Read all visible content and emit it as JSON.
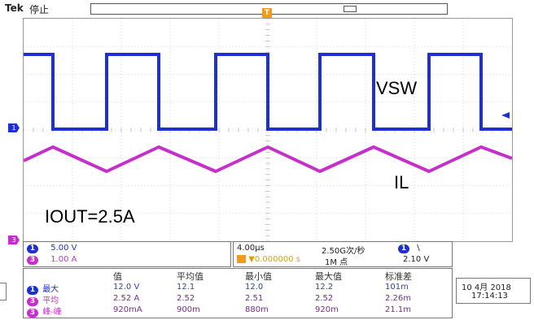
{
  "header": {
    "brand": "Tek",
    "status": "停止",
    "trigger_marker": "T"
  },
  "annotations": {
    "vsw": "VSW",
    "il": "IL",
    "iout": "IOUT=2.5A"
  },
  "channels": [
    {
      "id": "1",
      "scale": "5.00 V",
      "color": "#1f2fd6"
    },
    {
      "id": "3",
      "scale": "1.00 A",
      "color": "#c62fc9"
    }
  ],
  "timebase": {
    "scale": "4.00µs",
    "trigger_pos": "▼0.000000 s",
    "sample_rate": "2.50G次/秒",
    "record": "1M 点",
    "trig_source": "1",
    "trig_level": "2.10 V",
    "trig_slope": "\\"
  },
  "measurements": {
    "headers": [
      "值",
      "平均值",
      "最小值",
      "最大值",
      "标准差"
    ],
    "rows": [
      {
        "ch": "1",
        "label": "最大",
        "values": [
          "12.0 V",
          "12.1",
          "12.0",
          "12.2",
          "101m"
        ]
      },
      {
        "ch": "3",
        "label": "平均",
        "values": [
          "2.52 A",
          "2.52",
          "2.51",
          "2.52",
          "2.26m"
        ]
      },
      {
        "ch": "3",
        "label": "峰-峰",
        "values": [
          "920mA",
          "900m",
          "880m",
          "920m",
          "21.1m"
        ]
      }
    ]
  },
  "datetime": {
    "date": "10 4月 2018",
    "time": "17:14:13"
  }
}
